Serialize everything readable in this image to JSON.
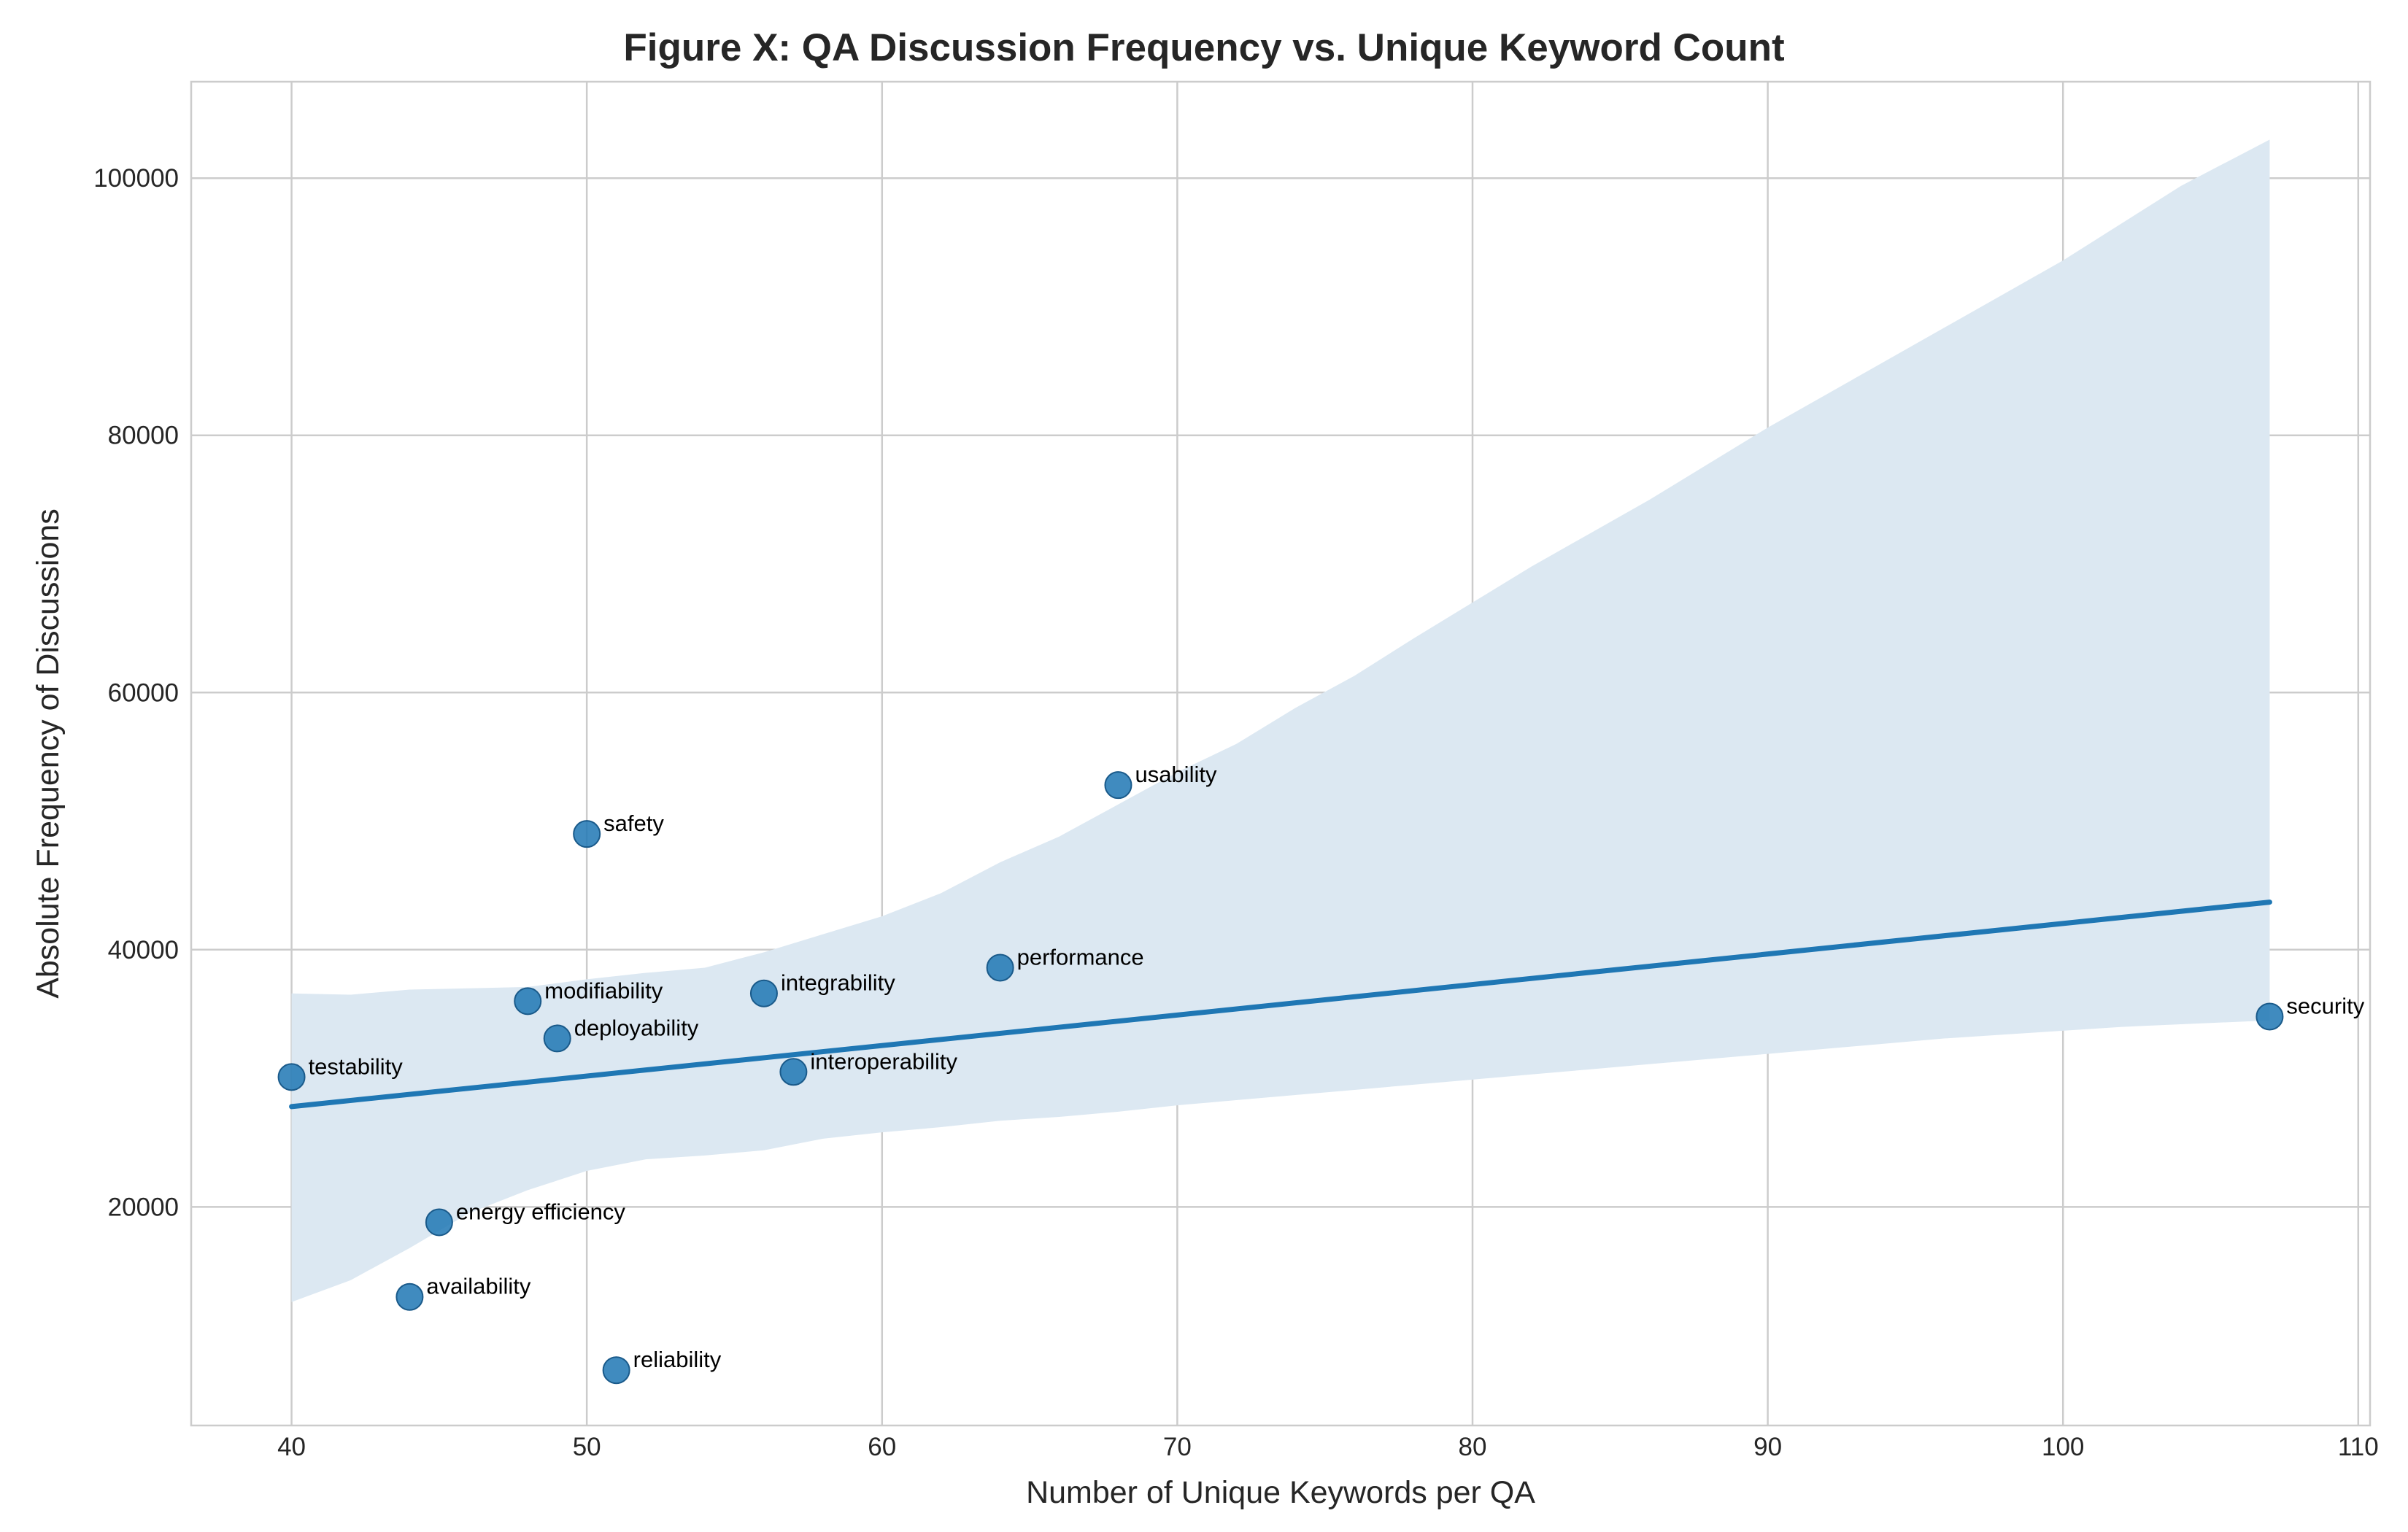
{
  "chart_data": {
    "type": "scatter",
    "title": "Figure X: QA Discussion Frequency vs. Unique Keyword Count",
    "xlabel": "Number of Unique Keywords per QA",
    "ylabel": "Absolute Frequency of Discussions",
    "xlim": [
      36.6,
      110.4
    ],
    "ylim": [
      3000,
      107500
    ],
    "xticks": [
      40,
      50,
      60,
      70,
      80,
      90,
      100,
      110
    ],
    "yticks": [
      20000,
      40000,
      60000,
      80000,
      100000
    ],
    "grid": true,
    "point_color": "#1f77b4",
    "points": [
      {
        "label": "testability",
        "x": 40,
        "y": 30100
      },
      {
        "label": "availability",
        "x": 44,
        "y": 13000
      },
      {
        "label": "energy efficiency",
        "x": 45,
        "y": 18800
      },
      {
        "label": "modifiability",
        "x": 48,
        "y": 36000
      },
      {
        "label": "deployability",
        "x": 49,
        "y": 33100
      },
      {
        "label": "safety",
        "x": 50,
        "y": 49000
      },
      {
        "label": "reliability",
        "x": 51,
        "y": 7300
      },
      {
        "label": "integrability",
        "x": 56,
        "y": 36600
      },
      {
        "label": "interoperability",
        "x": 57,
        "y": 30500
      },
      {
        "label": "performance",
        "x": 64,
        "y": 38600
      },
      {
        "label": "usability",
        "x": 68,
        "y": 52800
      },
      {
        "label": "security",
        "x": 107,
        "y": 34800
      }
    ],
    "regression": {
      "line": [
        [
          40,
          27800
        ],
        [
          107,
          43700
        ]
      ],
      "ci_upper": [
        [
          40,
          36600
        ],
        [
          42,
          36500
        ],
        [
          44,
          36900
        ],
        [
          46,
          37000
        ],
        [
          48,
          37100
        ],
        [
          50,
          37700
        ],
        [
          52,
          38200
        ],
        [
          54,
          38600
        ],
        [
          56,
          39800
        ],
        [
          58,
          41200
        ],
        [
          60,
          42600
        ],
        [
          62,
          44400
        ],
        [
          64,
          46800
        ],
        [
          66,
          48800
        ],
        [
          68,
          51300
        ],
        [
          70,
          53800
        ],
        [
          72,
          56000
        ],
        [
          74,
          58800
        ],
        [
          76,
          61300
        ],
        [
          78,
          64200
        ],
        [
          80,
          67000
        ],
        [
          82,
          69800
        ],
        [
          84,
          72400
        ],
        [
          86,
          75000
        ],
        [
          88,
          77800
        ],
        [
          90,
          80600
        ],
        [
          92,
          83200
        ],
        [
          94,
          85800
        ],
        [
          96,
          88400
        ],
        [
          98,
          91000
        ],
        [
          100,
          93600
        ],
        [
          102,
          96500
        ],
        [
          104,
          99400
        ],
        [
          107,
          103000
        ]
      ],
      "ci_lower": [
        [
          40,
          12600
        ],
        [
          42,
          14300
        ],
        [
          44,
          16800
        ],
        [
          46,
          19500
        ],
        [
          48,
          21300
        ],
        [
          50,
          22800
        ],
        [
          52,
          23700
        ],
        [
          54,
          24000
        ],
        [
          56,
          24400
        ],
        [
          58,
          25300
        ],
        [
          60,
          25800
        ],
        [
          62,
          26200
        ],
        [
          64,
          26700
        ],
        [
          66,
          27000
        ],
        [
          68,
          27400
        ],
        [
          70,
          27900
        ],
        [
          72,
          28300
        ],
        [
          74,
          28700
        ],
        [
          76,
          29100
        ],
        [
          78,
          29500
        ],
        [
          80,
          29900
        ],
        [
          82,
          30300
        ],
        [
          84,
          30700
        ],
        [
          86,
          31100
        ],
        [
          88,
          31500
        ],
        [
          90,
          31900
        ],
        [
          92,
          32300
        ],
        [
          94,
          32700
        ],
        [
          96,
          33100
        ],
        [
          98,
          33400
        ],
        [
          100,
          33700
        ],
        [
          102,
          34000
        ],
        [
          104,
          34200
        ],
        [
          107,
          34500
        ]
      ],
      "line_color": "#1f77b4",
      "band_color": "#dce8f2"
    }
  }
}
